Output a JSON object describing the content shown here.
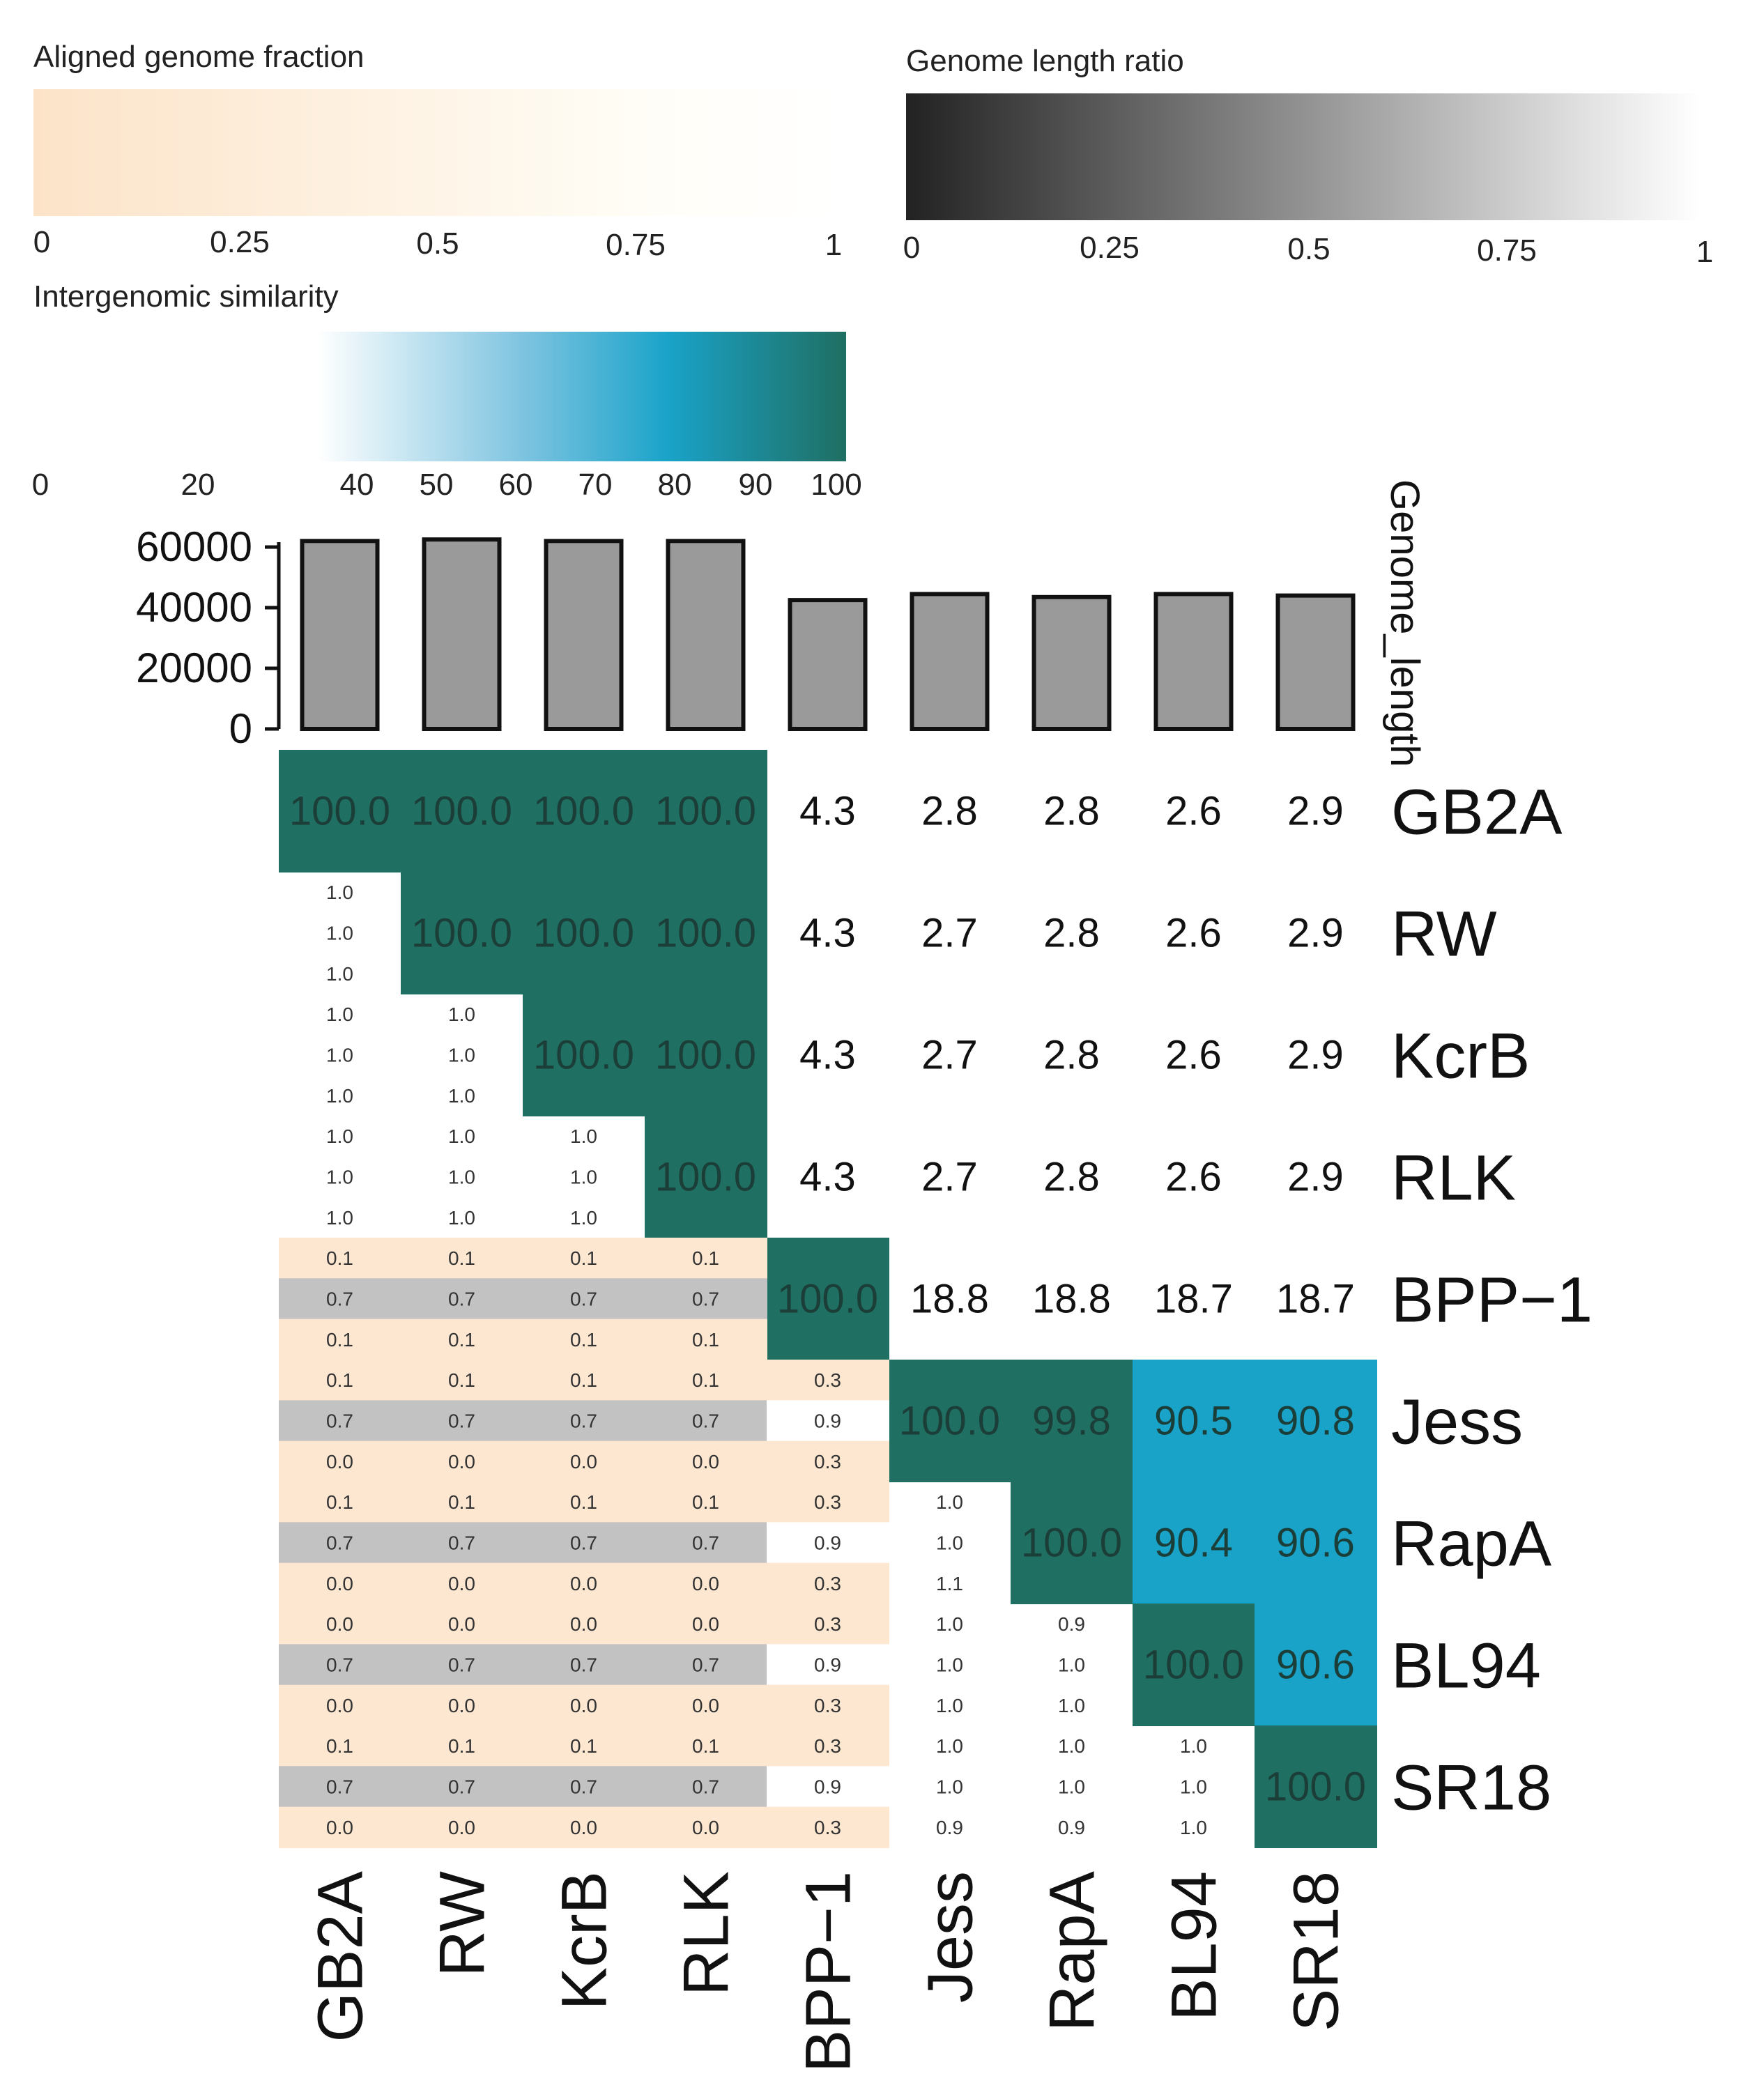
{
  "chart_data": {
    "type": "heatmap",
    "genomes": [
      "GB2A",
      "RW",
      "KcrB",
      "RLK",
      "BPP−1",
      "Jess",
      "RapA",
      "BL94",
      "SR18"
    ],
    "genome_length": {
      "axis_title": "Genome_length",
      "ticks": [
        "0",
        "20000",
        "40000",
        "60000"
      ],
      "ylim": [
        0,
        65000
      ],
      "values": [
        62000,
        62500,
        62000,
        62000,
        42500,
        44500,
        43500,
        44500,
        44000
      ]
    },
    "intergenomic_similarity": [
      [
        "100.0",
        "100.0",
        "100.0",
        "100.0",
        "4.3",
        "2.8",
        "2.8",
        "2.6",
        "2.9"
      ],
      [
        null,
        "100.0",
        "100.0",
        "100.0",
        "4.3",
        "2.7",
        "2.8",
        "2.6",
        "2.9"
      ],
      [
        null,
        null,
        "100.0",
        "100.0",
        "4.3",
        "2.7",
        "2.8",
        "2.6",
        "2.9"
      ],
      [
        null,
        null,
        null,
        "100.0",
        "4.3",
        "2.7",
        "2.8",
        "2.6",
        "2.9"
      ],
      [
        null,
        null,
        null,
        null,
        "100.0",
        "18.8",
        "18.8",
        "18.7",
        "18.7"
      ],
      [
        null,
        null,
        null,
        null,
        null,
        "100.0",
        "99.8",
        "90.5",
        "90.8"
      ],
      [
        null,
        null,
        null,
        null,
        null,
        null,
        "100.0",
        "90.4",
        "90.6"
      ],
      [
        null,
        null,
        null,
        null,
        null,
        null,
        null,
        "100.0",
        "90.6"
      ],
      [
        null,
        null,
        null,
        null,
        null,
        null,
        null,
        null,
        "100.0"
      ]
    ],
    "lower_triangle": [
      [],
      [
        [
          "1.0",
          "1.0",
          "1.0"
        ]
      ],
      [
        [
          "1.0",
          "1.0",
          "1.0"
        ],
        [
          "1.0",
          "1.0",
          "1.0"
        ]
      ],
      [
        [
          "1.0",
          "1.0",
          "1.0"
        ],
        [
          "1.0",
          "1.0",
          "1.0"
        ],
        [
          "1.0",
          "1.0",
          "1.0"
        ]
      ],
      [
        [
          "0.1",
          "0.7",
          "0.1"
        ],
        [
          "0.1",
          "0.7",
          "0.1"
        ],
        [
          "0.1",
          "0.7",
          "0.1"
        ],
        [
          "0.1",
          "0.7",
          "0.1"
        ]
      ],
      [
        [
          "0.1",
          "0.7",
          "0.0"
        ],
        [
          "0.1",
          "0.7",
          "0.0"
        ],
        [
          "0.1",
          "0.7",
          "0.0"
        ],
        [
          "0.1",
          "0.7",
          "0.0"
        ],
        [
          "0.3",
          "0.9",
          "0.3"
        ]
      ],
      [
        [
          "0.1",
          "0.7",
          "0.0"
        ],
        [
          "0.1",
          "0.7",
          "0.0"
        ],
        [
          "0.1",
          "0.7",
          "0.0"
        ],
        [
          "0.1",
          "0.7",
          "0.0"
        ],
        [
          "0.3",
          "0.9",
          "0.3"
        ],
        [
          "1.0",
          "1.0",
          "1.1"
        ]
      ],
      [
        [
          "0.0",
          "0.7",
          "0.0"
        ],
        [
          "0.0",
          "0.7",
          "0.0"
        ],
        [
          "0.0",
          "0.7",
          "0.0"
        ],
        [
          "0.0",
          "0.7",
          "0.0"
        ],
        [
          "0.3",
          "0.9",
          "0.3"
        ],
        [
          "1.0",
          "1.0",
          "1.0"
        ],
        [
          "0.9",
          "1.0",
          "1.0"
        ]
      ],
      [
        [
          "0.1",
          "0.7",
          "0.0"
        ],
        [
          "0.1",
          "0.7",
          "0.0"
        ],
        [
          "0.1",
          "0.7",
          "0.0"
        ],
        [
          "0.1",
          "0.7",
          "0.0"
        ],
        [
          "0.3",
          "0.9",
          "0.3"
        ],
        [
          "1.0",
          "1.0",
          "0.9"
        ],
        [
          "1.0",
          "1.0",
          "0.9"
        ],
        [
          "1.0",
          "1.0",
          "1.0"
        ]
      ]
    ],
    "legends": {
      "aligned_fraction": {
        "title": "Aligned genome fraction",
        "ticks": [
          "0",
          "0.25",
          "0.5",
          "0.75",
          "1"
        ],
        "colors": [
          "#fce3c8",
          "#fffdf6"
        ]
      },
      "length_ratio": {
        "title": "Genome length ratio",
        "ticks": [
          "0",
          "0.25",
          "0.5",
          "0.75",
          "1"
        ],
        "colors": [
          "#2a2a2a",
          "#ffffff"
        ]
      },
      "similarity": {
        "title": "Intergenomic similarity",
        "ticks": [
          "0",
          "20",
          "40",
          "50",
          "60",
          "70",
          "80",
          "90",
          "100"
        ],
        "colors": [
          "#ffffff",
          "#1aa3c9",
          "#1f6f62"
        ]
      }
    },
    "colors": {
      "similarity_high": "#1f6f62",
      "similarity_mid": "#1aa3c9",
      "fraction_fill": "#fde7d0",
      "ratio_fill": "#c2c2c2",
      "bar_fill": "#9a9a9a"
    }
  }
}
